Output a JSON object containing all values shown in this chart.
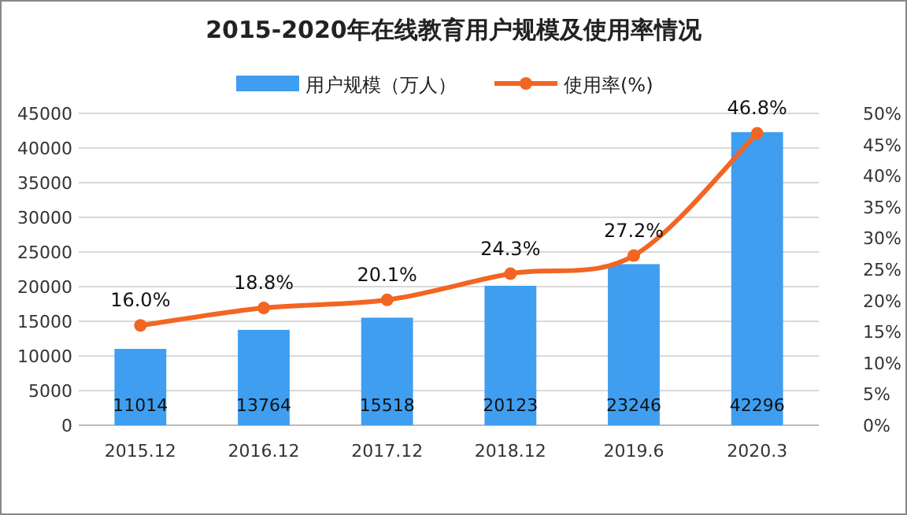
{
  "chart_data": {
    "type": "bar",
    "title": "2015-2020年在线教育用户规模及使用率情况",
    "categories": [
      "2015.12",
      "2016.12",
      "2017.12",
      "2018.12",
      "2019.6",
      "2020.3"
    ],
    "series": [
      {
        "name": "用户规模（万人）",
        "color": "#3f9ef0",
        "values": [
          11014,
          13764,
          15518,
          20123,
          23246,
          42296
        ],
        "value_labels": [
          "11014",
          "13764",
          "15518",
          "20123",
          "23246",
          "42296"
        ]
      },
      {
        "name": "使用率(%)",
        "type": "line",
        "axis": "y2",
        "color": "#f26522",
        "marker": "circle",
        "values": [
          16.0,
          18.8,
          20.1,
          24.3,
          27.2,
          46.8
        ],
        "value_labels": [
          "16.0%",
          "18.8%",
          "20.1%",
          "24.3%",
          "27.2%",
          "46.8%"
        ]
      }
    ],
    "ylim": [
      0,
      45000
    ],
    "yticks": [
      0,
      5000,
      10000,
      15000,
      20000,
      25000,
      30000,
      35000,
      40000,
      45000
    ],
    "y2lim": [
      0,
      50
    ],
    "y2ticks": [
      {
        "value": 0,
        "label": "0%"
      },
      {
        "value": 5,
        "label": "5%"
      },
      {
        "value": 10,
        "label": "10%"
      },
      {
        "value": 15,
        "label": "15%"
      },
      {
        "value": 20,
        "label": "20%"
      },
      {
        "value": 25,
        "label": "25%"
      },
      {
        "value": 30,
        "label": "30%"
      },
      {
        "value": 35,
        "label": "35%"
      },
      {
        "value": 40,
        "label": "40%"
      },
      {
        "value": 45,
        "label": "45%"
      },
      {
        "value": 50,
        "label": "50%"
      }
    ],
    "grid": "y",
    "legend": "top"
  }
}
